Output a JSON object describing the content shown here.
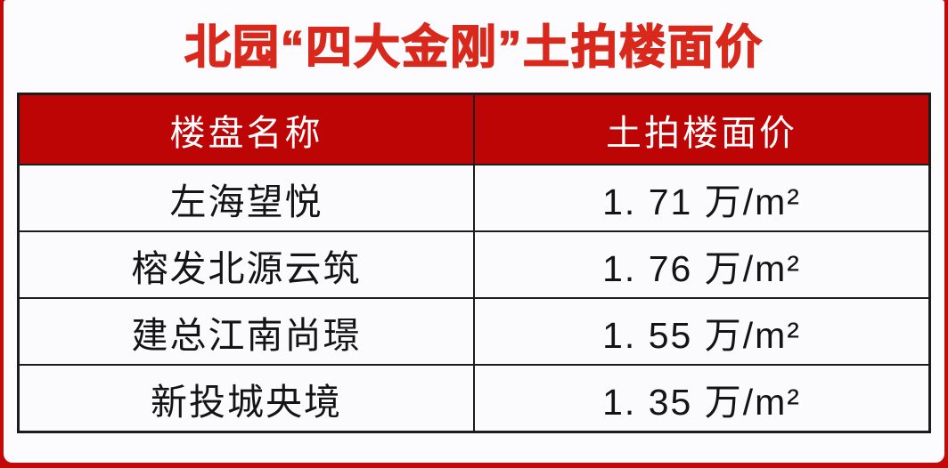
{
  "title": "北园“四大金刚”土拍楼面价",
  "colors": {
    "title_red": "#d8291c",
    "header_red": "#bd0505",
    "frame_red": "#c20a0a",
    "border_black": "#1c1c1c",
    "card_bg": "#fcfcfe",
    "cell_bg": "#fbfbfd"
  },
  "table": {
    "headers": [
      "楼盘名称",
      "土拍楼面价"
    ],
    "rows": [
      {
        "name": "左海望悦",
        "price": "1. 71 万/m²"
      },
      {
        "name": "榕发北源云筑",
        "price": "1. 76 万/m²"
      },
      {
        "name": "建总江南尚璟",
        "price": "1. 55 万/m²"
      },
      {
        "name": "新投城央境",
        "price": "1. 35 万/m²"
      }
    ]
  },
  "chart_data": {
    "type": "table",
    "title": "北园“四大金刚”土拍楼面价",
    "columns": [
      "楼盘名称",
      "土拍楼面价"
    ],
    "rows": [
      [
        "左海望悦",
        "1.71 万/m²"
      ],
      [
        "榕发北源云筑",
        "1.76 万/m²"
      ],
      [
        "建总江南尚璟",
        "1.55 万/m²"
      ],
      [
        "新投城央境",
        "1.35 万/m²"
      ]
    ],
    "values_wan_per_m2": [
      1.71,
      1.76,
      1.55,
      1.35
    ],
    "unit": "万/m²",
    "legend_position": "none",
    "grid": "table-borders"
  }
}
